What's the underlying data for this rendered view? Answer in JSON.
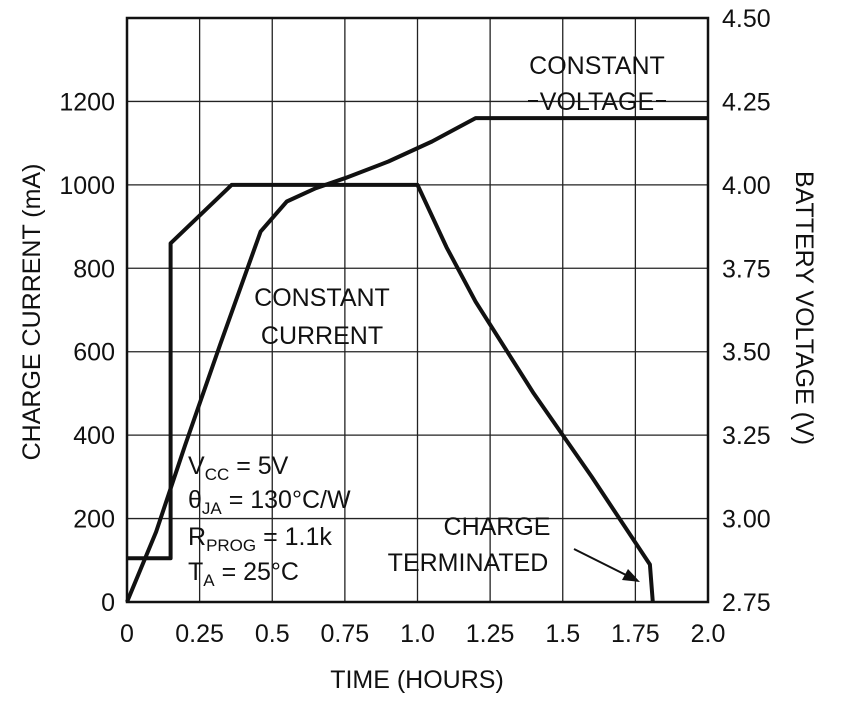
{
  "chart_data": {
    "type": "line",
    "xlabel": "TIME (HOURS)",
    "ylabel_left": "CHARGE CURRENT (mA)",
    "ylabel_right": "BATTERY VOLTAGE (V)",
    "xlim": [
      0,
      2.0
    ],
    "ylim_left": [
      0,
      1400
    ],
    "ylim_right": [
      2.75,
      4.5
    ],
    "x_ticks": [
      0,
      0.25,
      0.5,
      0.75,
      1.0,
      1.25,
      1.5,
      1.75,
      2.0
    ],
    "x_tick_labels": [
      "0",
      "0.25",
      "0.5",
      "0.75",
      "1.0",
      "1.25",
      "1.5",
      "1.75",
      "2.0"
    ],
    "y_left_ticks": [
      0,
      200,
      400,
      600,
      800,
      1000,
      1200
    ],
    "y_left_tick_labels": [
      "0",
      "200",
      "400",
      "600",
      "800",
      "1000",
      "1200"
    ],
    "y_right_ticks": [
      2.75,
      3.0,
      3.25,
      3.5,
      3.75,
      4.0,
      4.25,
      4.5
    ],
    "y_right_tick_labels": [
      "2.75",
      "3.00",
      "3.25",
      "3.50",
      "3.75",
      "4.00",
      "4.25",
      "4.50"
    ],
    "grid": true,
    "series": [
      {
        "axis": "left",
        "values": [
          [
            0,
            105
          ],
          [
            0.15,
            105
          ],
          [
            0.15,
            860
          ],
          [
            0.36,
            1000
          ],
          [
            1.0,
            1000
          ],
          [
            1.1,
            850
          ],
          [
            1.2,
            720
          ],
          [
            1.4,
            500
          ],
          [
            1.6,
            300
          ],
          [
            1.8,
            90
          ],
          [
            1.81,
            0
          ]
        ]
      },
      {
        "axis": "right",
        "values": [
          [
            0,
            2.75
          ],
          [
            0.1,
            2.96
          ],
          [
            0.2,
            3.22
          ],
          [
            0.32,
            3.52
          ],
          [
            0.46,
            3.86
          ],
          [
            0.55,
            3.95
          ],
          [
            0.65,
            3.99
          ],
          [
            0.75,
            4.02
          ],
          [
            0.9,
            4.07
          ],
          [
            1.05,
            4.13
          ],
          [
            1.2,
            4.2
          ],
          [
            2.0,
            4.2
          ]
        ]
      }
    ],
    "annotations": {
      "constant_voltage": [
        "CONSTANT",
        "VOLTAGE"
      ],
      "constant_current": [
        "CONSTANT",
        "CURRENT"
      ],
      "charge_terminated": [
        "CHARGE",
        "TERMINATED"
      ]
    },
    "conditions": {
      "vcc_sym": "V",
      "vcc_sub": "CC",
      "vcc_val": " = 5V",
      "theta_sym": "θ",
      "theta_sub": "JA",
      "theta_val": " = 130°C/W",
      "rprog_sym": "R",
      "rprog_sub": "PROG",
      "rprog_val": " = 1.1k",
      "ta_sym": "T",
      "ta_sub": "A",
      "ta_val": " = 25°C"
    }
  }
}
